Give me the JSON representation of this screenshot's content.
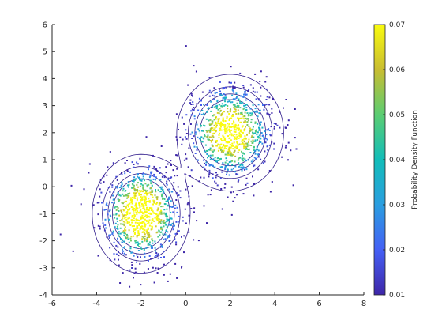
{
  "chart_data": {
    "type": "scatter",
    "title": "",
    "xlabel": "",
    "ylabel": "",
    "xlim": [
      -6,
      8
    ],
    "ylim": [
      -4,
      6
    ],
    "x_ticks": [
      "-6",
      "-4",
      "-2",
      "0",
      "2",
      "4",
      "6",
      "8"
    ],
    "y_ticks": [
      "-4",
      "-3",
      "-2",
      "-1",
      "0",
      "1",
      "2",
      "3",
      "4",
      "5",
      "6"
    ],
    "grid": false,
    "clusters": [
      {
        "center": [
          -2,
          -1
        ],
        "spread": [
          0.9,
          0.9
        ],
        "count": 900
      },
      {
        "center": [
          2,
          2
        ],
        "spread": [
          1.0,
          0.9
        ],
        "count": 900
      }
    ],
    "contour_levels": [
      0.005,
      0.015,
      0.025,
      0.035
    ],
    "colorbar": {
      "label": "Probability Density Function",
      "range": [
        0.01,
        0.07
      ],
      "ticks": [
        "0.01",
        "0.02",
        "0.03",
        "0.04",
        "0.05",
        "0.06",
        "0.07"
      ],
      "colors": [
        "#3e26a8",
        "#4560f5",
        "#2a9ee0",
        "#12bdb9",
        "#5bcd72",
        "#c9bd31",
        "#f9fb0e"
      ]
    }
  }
}
